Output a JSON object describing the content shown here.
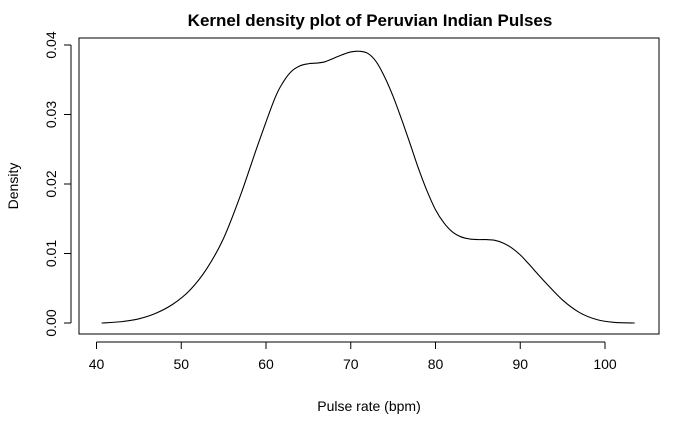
{
  "chart_data": {
    "type": "line",
    "title": "Kernel density plot of Peruvian Indian Pulses",
    "xlabel": "Pulse rate (bpm)",
    "ylabel": "Density",
    "xlim": [
      40,
      104
    ],
    "ylim": [
      0,
      0.04
    ],
    "xticks": [
      40,
      50,
      60,
      70,
      80,
      90,
      100
    ],
    "yticks": [
      0.0,
      0.01,
      0.02,
      0.03,
      0.04
    ],
    "ytick_labels": [
      "0.00",
      "0.01",
      "0.02",
      "0.03",
      "0.04"
    ],
    "grid": false,
    "series": [
      {
        "color": "#000000",
        "x": [
          40.6,
          43,
          45,
          47,
          49,
          51,
          53,
          55,
          57,
          59,
          61,
          62,
          63,
          64,
          65,
          66,
          67,
          68,
          69,
          70,
          71,
          72,
          73,
          74,
          75,
          76,
          77,
          78,
          79,
          80,
          81,
          82,
          83,
          84,
          85,
          86,
          87,
          88,
          89,
          90,
          91,
          93,
          95,
          97,
          99,
          101,
          103.5
        ],
        "y": [
          0.0,
          0.0002,
          0.0006,
          0.0014,
          0.0027,
          0.0047,
          0.0078,
          0.0122,
          0.0184,
          0.0255,
          0.0322,
          0.0346,
          0.0362,
          0.037,
          0.0373,
          0.0374,
          0.0376,
          0.0381,
          0.0386,
          0.039,
          0.0391,
          0.0388,
          0.0376,
          0.0354,
          0.0326,
          0.0293,
          0.0258,
          0.0222,
          0.019,
          0.0163,
          0.0144,
          0.0131,
          0.0124,
          0.0121,
          0.012,
          0.012,
          0.0119,
          0.0115,
          0.0108,
          0.0098,
          0.0085,
          0.0058,
          0.0033,
          0.0015,
          0.0005,
          0.0001,
          0.0
        ]
      }
    ]
  }
}
